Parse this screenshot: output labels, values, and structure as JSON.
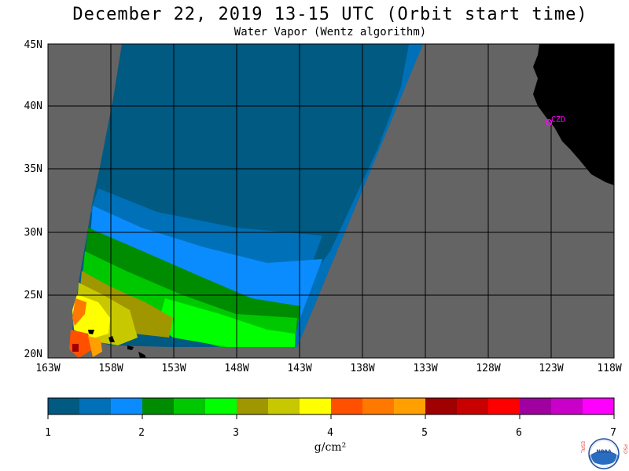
{
  "title": "December 22, 2019  13-15 UTC  (Orbit start time)",
  "subtitle": "Water Vapor (Wentz algorithm)",
  "lat_labels": [
    "45N",
    "40N",
    "35N",
    "30N",
    "25N",
    "20N"
  ],
  "lon_labels": [
    "163W",
    "158W",
    "153W",
    "148W",
    "143W",
    "138W",
    "133W",
    "128W",
    "123W",
    "118W"
  ],
  "marker_label": "CZD",
  "colorbar": {
    "ticks": [
      "1",
      "2",
      "3",
      "4",
      "5",
      "6",
      "7"
    ],
    "units": "g/cm²",
    "colors": [
      "#005a82",
      "#0070b8",
      "#0a8cff",
      "#008c00",
      "#00c800",
      "#00ff00",
      "#a09600",
      "#c8c800",
      "#ffff00",
      "#ff5000",
      "#ff7800",
      "#ffa000",
      "#a00000",
      "#c80000",
      "#ff0000",
      "#a000a0",
      "#c800c8",
      "#ff00ff"
    ]
  },
  "map_colors": {
    "nodata": "#646464",
    "land": "#000000",
    "grid": "#000000",
    "marker": "#ff00ff"
  },
  "logo": {
    "left_letters": "ESRL",
    "right_letters": "PSD",
    "center": "NOAA"
  }
}
